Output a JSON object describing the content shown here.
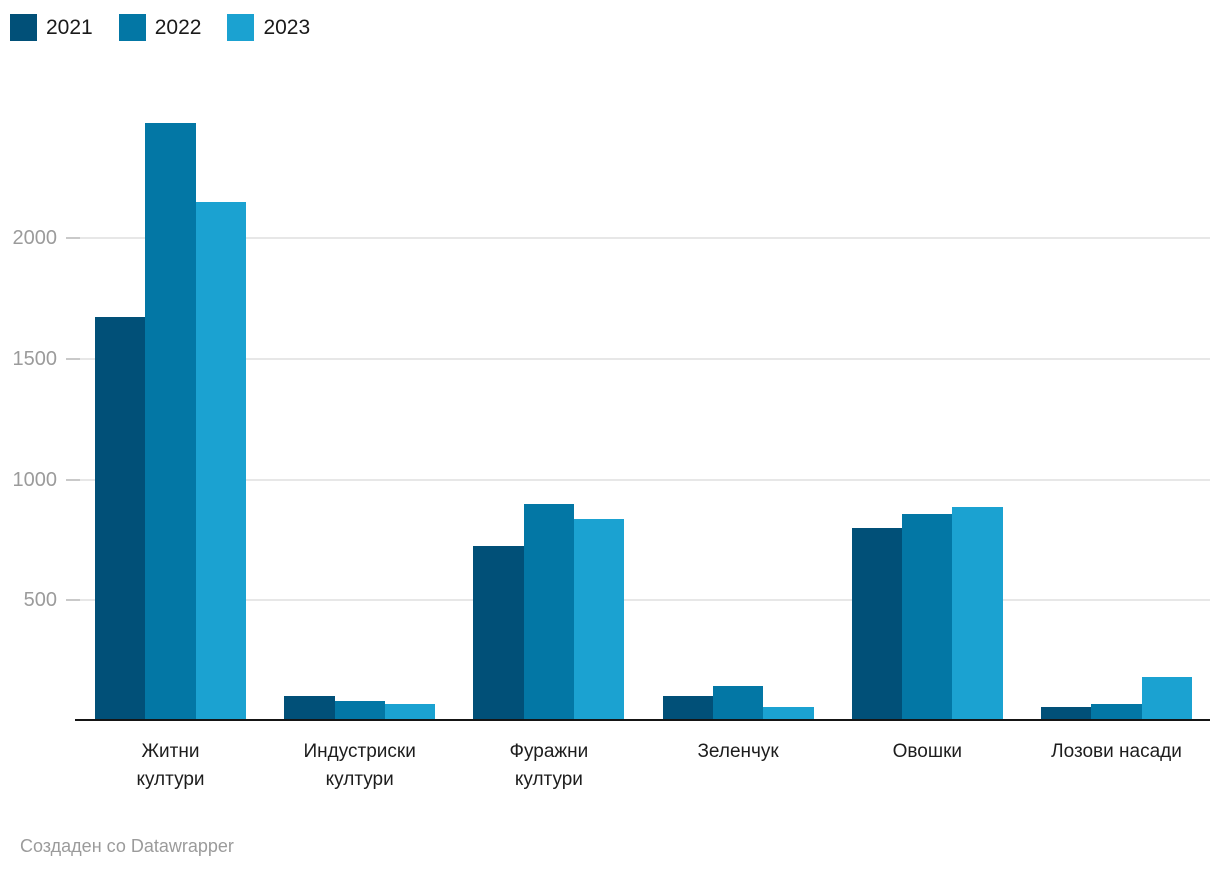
{
  "legend": {
    "items": [
      {
        "label": "2021",
        "color": "#015078"
      },
      {
        "label": "2022",
        "color": "#0377a5"
      },
      {
        "label": "2023",
        "color": "#1ba2d1"
      }
    ]
  },
  "chart_data": {
    "type": "bar",
    "grouped": true,
    "categories": [
      [
        "Житни",
        "култури"
      ],
      [
        "Индустриски",
        "култури"
      ],
      [
        "Фуражни",
        "култури"
      ],
      [
        "Зеленчук"
      ],
      [
        "Овошки"
      ],
      [
        "Лозови насади"
      ]
    ],
    "series": [
      {
        "name": "2021",
        "color": "#015078",
        "values": [
          1675,
          104,
          725,
          105,
          800,
          59
        ]
      },
      {
        "name": "2022",
        "color": "#0377a5",
        "values": [
          2480,
          83,
          900,
          145,
          858,
          70
        ]
      },
      {
        "name": "2023",
        "color": "#1ba2d1",
        "values": [
          2150,
          70,
          838,
          58,
          887,
          184
        ]
      }
    ],
    "title": "",
    "xlabel": "",
    "ylabel": "",
    "yticks": [
      500,
      1000,
      1500,
      2000
    ],
    "ylim": [
      0,
      2590
    ],
    "grid": true,
    "legend_position": "top-left"
  },
  "footer": {
    "credit": "Создаден со Datawrapper"
  },
  "colors": {
    "gridline": "#e7e7e7",
    "tick_dash": "#c9c9c9",
    "axis_line": "#151515",
    "tick_text": "#9b9b9b",
    "category_text": "#1d1d1d",
    "background": "#ffffff"
  }
}
